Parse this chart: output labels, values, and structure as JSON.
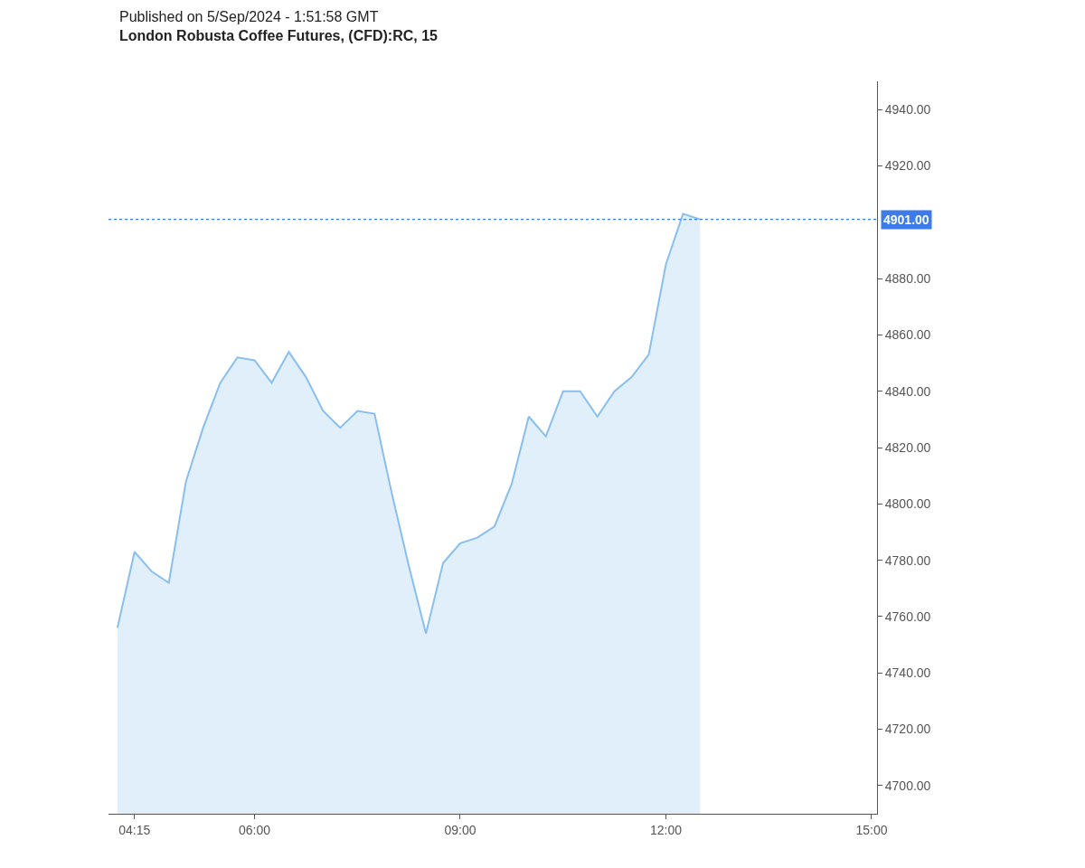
{
  "chart_data": {
    "type": "area",
    "title": "Published on 5/Sep/2024 - 1:51:58 GMT",
    "subtitle": "London Robusta Coffee Futures, (CFD):RC, 15",
    "x": [
      4.0,
      4.25,
      4.5,
      4.75,
      5.0,
      5.25,
      5.5,
      5.75,
      6.0,
      6.25,
      6.5,
      6.75,
      7.0,
      7.25,
      7.5,
      7.75,
      8.0,
      8.25,
      8.5,
      8.75,
      9.0,
      9.25,
      9.5,
      9.75,
      10.0,
      10.25,
      10.5,
      10.75,
      11.0,
      11.25,
      11.5,
      11.75,
      12.0,
      12.25,
      12.5
    ],
    "series": [
      {
        "color": "#88bff0",
        "values": [
          4756,
          4783,
          4776,
          4772,
          4808,
          4827,
          4843,
          4852,
          4851,
          4843,
          4854,
          4845,
          4833,
          4827,
          4833,
          4832,
          4804,
          4778,
          4754,
          4779,
          4786,
          4788,
          4792,
          4807,
          4831,
          4824,
          4840,
          4840,
          4831,
          4840,
          4845,
          4853,
          4885,
          4903,
          4901
        ]
      }
    ],
    "xlim": [
      3.87,
      15.08
    ],
    "xticks": [
      {
        "value": 4.25,
        "label": "04:15"
      },
      {
        "value": 6,
        "label": "06:00"
      },
      {
        "value": 9,
        "label": "09:00"
      },
      {
        "value": 12,
        "label": "12:00"
      },
      {
        "value": 15,
        "label": "15:00"
      }
    ],
    "ylim": [
      4690,
      4950
    ],
    "yticks": [
      {
        "value": 4700,
        "label": "4700.00"
      },
      {
        "value": 4720,
        "label": "4720.00"
      },
      {
        "value": 4740,
        "label": "4740.00"
      },
      {
        "value": 4760,
        "label": "4760.00"
      },
      {
        "value": 4780,
        "label": "4780.00"
      },
      {
        "value": 4800,
        "label": "4800.00"
      },
      {
        "value": 4820,
        "label": "4820.00"
      },
      {
        "value": 4840,
        "label": "4840.00"
      },
      {
        "value": 4860,
        "label": "4860.00"
      },
      {
        "value": 4880,
        "label": "4880.00"
      },
      {
        "value": 4920,
        "label": "4920.00"
      },
      {
        "value": 4940,
        "label": "4940.00"
      }
    ],
    "ref_lines": [
      {
        "axis": "y",
        "value": 4901,
        "label": "4901.00",
        "color": "#3d7bea",
        "line_style": "dotted"
      }
    ],
    "legend": false
  }
}
